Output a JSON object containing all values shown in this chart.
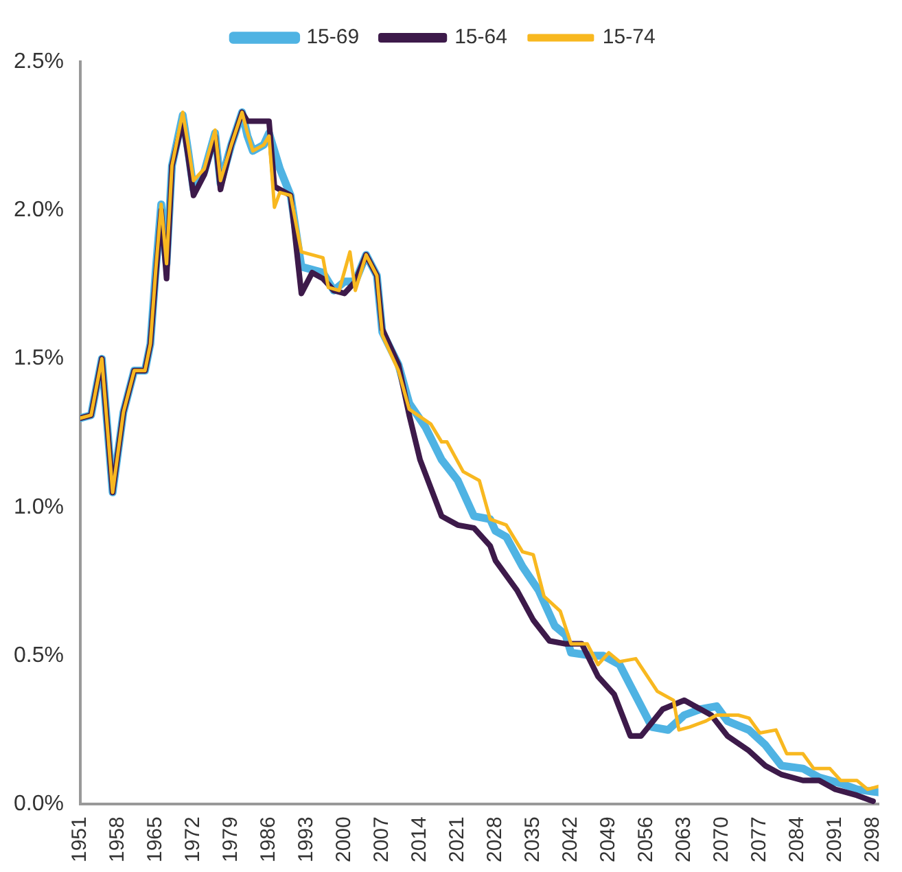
{
  "chart_data": {
    "type": "line",
    "legend": "top",
    "grid": false,
    "line_style": "solid",
    "marker": "none",
    "xlim": [
      1951,
      2099
    ],
    "xticks": [
      1951,
      1958,
      1965,
      1972,
      1979,
      1986,
      1993,
      2000,
      2007,
      2014,
      2021,
      2028,
      2035,
      2042,
      2049,
      2056,
      2063,
      2070,
      2077,
      2084,
      2091,
      2098
    ],
    "ylim": [
      0,
      2.5
    ],
    "yticks": [
      {
        "value": 0,
        "label": "0.0%"
      },
      {
        "value": 0.5,
        "label": "0.5%"
      },
      {
        "value": 1,
        "label": "1.0%"
      },
      {
        "value": 1.5,
        "label": "1.5%"
      },
      {
        "value": 2,
        "label": "2.0%"
      },
      {
        "value": 2.5,
        "label": "2.5%"
      }
    ],
    "series": [
      {
        "name": "15-69",
        "color": "#4fb3e3",
        "x": [
          1951,
          1953,
          1955,
          1957,
          1959,
          1961,
          1963,
          1964,
          1965,
          1966,
          1967,
          1968,
          1970,
          1971,
          1972,
          1974,
          1976,
          1977,
          1979,
          1981,
          1982,
          1983,
          1985,
          1986,
          1988,
          1990,
          1992,
          1994,
          1996,
          1998,
          2000,
          2002,
          2004,
          2006,
          2007,
          2010,
          2012,
          2015,
          2018,
          2021,
          2024,
          2027,
          2028,
          2030,
          2033,
          2036,
          2039,
          2041,
          2042,
          2046,
          2048,
          2051,
          2053,
          2057,
          2060,
          2063,
          2066,
          2069,
          2071,
          2075,
          2078,
          2081,
          2085,
          2088,
          2092,
          2095,
          2099
        ],
        "values": [
          1.3,
          1.31,
          1.5,
          1.05,
          1.32,
          1.46,
          1.46,
          1.55,
          1.8,
          2.02,
          1.82,
          2.15,
          2.32,
          2.2,
          2.07,
          2.13,
          2.26,
          2.09,
          2.22,
          2.33,
          2.25,
          2.2,
          2.22,
          2.26,
          2.14,
          2.05,
          1.81,
          1.8,
          1.79,
          1.73,
          1.76,
          1.76,
          1.85,
          1.78,
          1.59,
          1.48,
          1.35,
          1.27,
          1.16,
          1.09,
          0.97,
          0.96,
          0.92,
          0.9,
          0.8,
          0.72,
          0.6,
          0.57,
          0.51,
          0.5,
          0.5,
          0.47,
          0.4,
          0.26,
          0.25,
          0.3,
          0.32,
          0.33,
          0.28,
          0.25,
          0.2,
          0.13,
          0.12,
          0.09,
          0.07,
          0.05,
          0.04
        ]
      },
      {
        "name": "15-64",
        "color": "#3d1a4a",
        "x": [
          1951,
          1953,
          1955,
          1957,
          1959,
          1961,
          1963,
          1964,
          1965,
          1966,
          1967,
          1968,
          1970,
          1971,
          1972,
          1974,
          1976,
          1977,
          1979,
          1981,
          1982,
          1983,
          1985,
          1986,
          1987,
          1990,
          1992,
          1994,
          1996,
          1998,
          2000,
          2002,
          2004,
          2006,
          2007,
          2010,
          2012,
          2014,
          2018,
          2021,
          2024,
          2027,
          2028,
          2032,
          2035,
          2038,
          2041,
          2044,
          2047,
          2050,
          2053,
          2055,
          2059,
          2063,
          2065,
          2068,
          2071,
          2075,
          2078,
          2081,
          2085,
          2088,
          2091,
          2095,
          2098
        ],
        "values": [
          1.3,
          1.31,
          1.5,
          1.05,
          1.32,
          1.46,
          1.46,
          1.55,
          1.78,
          2.0,
          1.77,
          2.15,
          2.3,
          2.18,
          2.05,
          2.12,
          2.25,
          2.07,
          2.22,
          2.33,
          2.3,
          2.3,
          2.3,
          2.3,
          2.08,
          2.05,
          1.72,
          1.79,
          1.77,
          1.73,
          1.72,
          1.76,
          1.85,
          1.78,
          1.6,
          1.48,
          1.31,
          1.16,
          0.97,
          0.94,
          0.93,
          0.87,
          0.82,
          0.72,
          0.62,
          0.55,
          0.54,
          0.54,
          0.43,
          0.37,
          0.23,
          0.23,
          0.32,
          0.35,
          0.33,
          0.3,
          0.23,
          0.18,
          0.13,
          0.1,
          0.08,
          0.08,
          0.05,
          0.03,
          0.01
        ]
      },
      {
        "name": "15-74",
        "color": "#f8b820",
        "x": [
          1951,
          1953,
          1955,
          1957,
          1959,
          1961,
          1963,
          1964,
          1965,
          1966,
          1967,
          1968,
          1970,
          1971,
          1972,
          1974,
          1976,
          1977,
          1979,
          1981,
          1982,
          1983,
          1985,
          1986,
          1987,
          1988,
          1990,
          1992,
          1994,
          1996,
          1997,
          1999,
          2001,
          2002,
          2004,
          2006,
          2007,
          2010,
          2012,
          2016,
          2018,
          2019,
          2022,
          2025,
          2027,
          2030,
          2033,
          2035,
          2037,
          2040,
          2042,
          2045,
          2047,
          2049,
          2051,
          2054,
          2058,
          2061,
          2062,
          2064,
          2067,
          2069,
          2073,
          2075,
          2077,
          2080,
          2082,
          2085,
          2087,
          2090,
          2092,
          2095,
          2097,
          2099
        ],
        "values": [
          1.3,
          1.31,
          1.5,
          1.05,
          1.32,
          1.46,
          1.46,
          1.55,
          1.8,
          2.02,
          1.82,
          2.15,
          2.33,
          2.22,
          2.1,
          2.14,
          2.27,
          2.1,
          2.22,
          2.33,
          2.26,
          2.2,
          2.22,
          2.25,
          2.01,
          2.06,
          2.05,
          1.86,
          1.85,
          1.84,
          1.74,
          1.73,
          1.86,
          1.73,
          1.85,
          1.78,
          1.58,
          1.46,
          1.33,
          1.28,
          1.22,
          1.22,
          1.12,
          1.09,
          0.96,
          0.94,
          0.85,
          0.84,
          0.7,
          0.65,
          0.54,
          0.54,
          0.47,
          0.51,
          0.48,
          0.49,
          0.38,
          0.35,
          0.25,
          0.26,
          0.28,
          0.3,
          0.3,
          0.29,
          0.24,
          0.25,
          0.17,
          0.17,
          0.12,
          0.12,
          0.08,
          0.08,
          0.05,
          0.06
        ]
      }
    ]
  }
}
